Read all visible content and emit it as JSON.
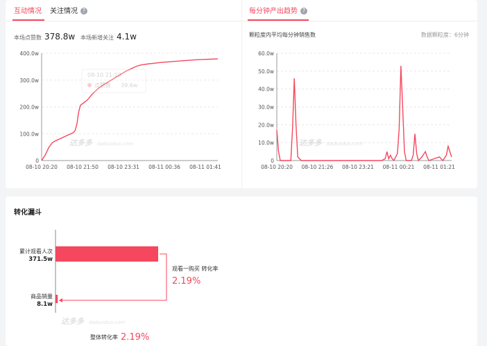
{
  "tabs": [
    {
      "label": "互动情况",
      "active": true
    },
    {
      "label": "关注情况",
      "active": false
    },
    {
      "label": "每分钟产出趋势",
      "active": true
    }
  ],
  "stats": {
    "views_label": "本场点赞数",
    "views_value": "378.8w",
    "follows_label": "本场新增关注",
    "follows_value": "4.1w"
  },
  "right_panel": {
    "subtitle": "颗粒度内平均每分钟销售数",
    "granularity": "数据颗粒度：6分钟"
  },
  "tooltip": {
    "time": "08-10 21:10",
    "label": "点赞数",
    "value": "39.6w"
  },
  "watermark": {
    "text": "达多多",
    "domain": "daduoduo.com"
  },
  "accent_color": "#f5475d",
  "chart_data": [
    {
      "type": "line",
      "ylabel": "",
      "xlabel": "",
      "y_ticks": [
        "400.0w",
        "300.0w",
        "200.0w",
        "100.0w",
        "0"
      ],
      "x_ticks": [
        "08-10 20:20",
        "08-10 21:50",
        "08-10 23:31",
        "08-11 00:36",
        "08-11 01:41"
      ],
      "ylim": [
        0,
        400
      ],
      "x_range": [
        0,
        100
      ],
      "series": [
        {
          "points": [
            [
              0,
              0
            ],
            [
              2,
              20
            ],
            [
              4,
              48
            ],
            [
              6,
              66
            ],
            [
              8,
              74
            ],
            [
              10,
              80
            ],
            [
              12,
              86
            ],
            [
              14,
              92
            ],
            [
              16,
              98
            ],
            [
              18,
              104
            ],
            [
              19,
              112
            ],
            [
              20,
              135
            ],
            [
              21,
              180
            ],
            [
              22,
              206
            ],
            [
              24,
              216
            ],
            [
              26,
              226
            ],
            [
              28,
              242
            ],
            [
              30,
              256
            ],
            [
              32,
              268
            ],
            [
              34,
              278
            ],
            [
              36,
              286
            ],
            [
              38,
              294
            ],
            [
              40,
              302
            ],
            [
              42,
              310
            ],
            [
              44,
              318
            ],
            [
              46,
              326
            ],
            [
              48,
              334
            ],
            [
              50,
              340
            ],
            [
              52,
              346
            ],
            [
              54,
              352
            ],
            [
              56,
              356
            ],
            [
              58,
              358
            ],
            [
              60,
              360
            ],
            [
              64,
              363
            ],
            [
              68,
              366
            ],
            [
              72,
              368
            ],
            [
              76,
              370
            ],
            [
              80,
              372
            ],
            [
              84,
              374
            ],
            [
              88,
              376
            ],
            [
              92,
              377
            ],
            [
              96,
              378
            ],
            [
              100,
              379
            ]
          ]
        }
      ],
      "grid": true
    },
    {
      "type": "line",
      "ylabel": "",
      "xlabel": "",
      "y_ticks": [
        "60.0w",
        "50.0w",
        "40.0w",
        "30.0w",
        "20.0w",
        "10.0w",
        "0"
      ],
      "x_ticks": [
        "08-10 20:20",
        "08-10 21:26",
        "08-10 23:21",
        "08-11 00:21",
        "08-11 01:21"
      ],
      "ylim": [
        0,
        60
      ],
      "x_range": [
        0,
        100
      ],
      "series": [
        {
          "points": [
            [
              0,
              17
            ],
            [
              1,
              5
            ],
            [
              2,
              0
            ],
            [
              8,
              0
            ],
            [
              9,
              18
            ],
            [
              10,
              46
            ],
            [
              11,
              20
            ],
            [
              12,
              2
            ],
            [
              14,
              0
            ],
            [
              18,
              0
            ],
            [
              30,
              0
            ],
            [
              45,
              0
            ],
            [
              60,
              0
            ],
            [
              62,
              1
            ],
            [
              63,
              5
            ],
            [
              64,
              1
            ],
            [
              65,
              3
            ],
            [
              66,
              1
            ],
            [
              67,
              0
            ],
            [
              68,
              2
            ],
            [
              69,
              4
            ],
            [
              70,
              18
            ],
            [
              71,
              53
            ],
            [
              72,
              30
            ],
            [
              73,
              5
            ],
            [
              74,
              0
            ],
            [
              77,
              0
            ],
            [
              78,
              3
            ],
            [
              79,
              15
            ],
            [
              80,
              4
            ],
            [
              81,
              0
            ],
            [
              83,
              2
            ],
            [
              85,
              5
            ],
            [
              86,
              2
            ],
            [
              87,
              0
            ],
            [
              90,
              1
            ],
            [
              93,
              2
            ],
            [
              95,
              0
            ],
            [
              97,
              3
            ],
            [
              98,
              8
            ],
            [
              99,
              5
            ],
            [
              100,
              2
            ]
          ]
        }
      ],
      "grid": true
    },
    {
      "type": "bar",
      "title": "转化漏斗",
      "categories": [
        "累计观看人次",
        "商品销量"
      ],
      "values": [
        371.5,
        8.1
      ],
      "value_labels": [
        "371.5w",
        "8.1w"
      ],
      "conversion_label": "观看一购买 转化率",
      "conversion_value": "2.19%",
      "overall_label": "整体转化率",
      "overall_value": "2.19%"
    }
  ]
}
